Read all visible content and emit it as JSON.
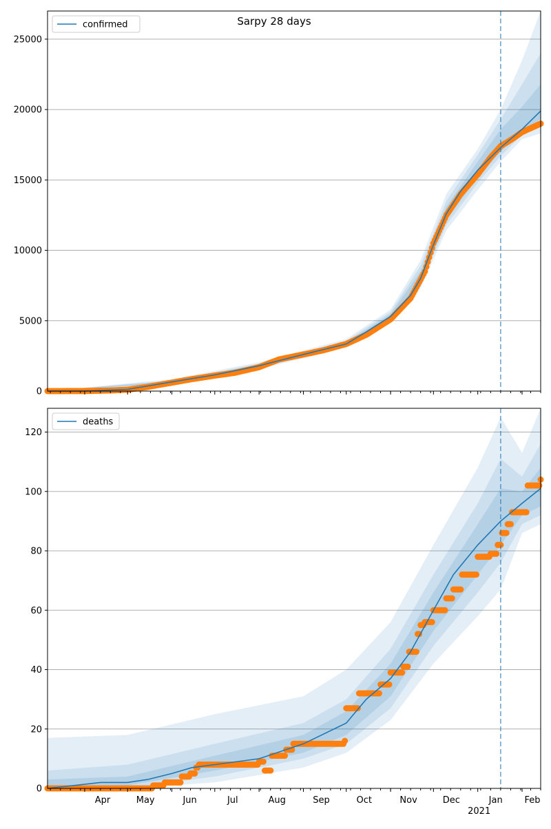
{
  "title": "Sarpy 28 days",
  "x_axis": {
    "month_labels": [
      "Apr",
      "May",
      "Jun",
      "Jul",
      "Aug",
      "Sep",
      "Oct",
      "Nov",
      "Dec",
      "Jan",
      "Feb"
    ],
    "year_label": "2021",
    "start_date": "2020-03-06",
    "end_date": "2021-02-14",
    "forecast_start": "2021-01-17"
  },
  "colors": {
    "model_line": "#1f77b4",
    "observed": "#ff7f0e",
    "band": "#1f77b4",
    "grid": "#b0b0b0",
    "forecast_marker": "#1f77b4"
  },
  "chart_data": [
    {
      "type": "line",
      "legend": "confirmed",
      "legend_position": "upper-left",
      "grid": "y-only",
      "ylim": [
        0,
        27000
      ],
      "y_ticks": [
        0,
        5000,
        10000,
        15000,
        20000,
        25000
      ],
      "observed_points": [
        [
          "2020-03-06",
          0
        ],
        [
          "2020-04-01",
          5
        ],
        [
          "2020-04-20",
          50
        ],
        [
          "2020-05-01",
          100
        ],
        [
          "2020-05-15",
          300
        ],
        [
          "2020-06-01",
          600
        ],
        [
          "2020-06-15",
          850
        ],
        [
          "2020-07-01",
          1100
        ],
        [
          "2020-07-15",
          1300
        ],
        [
          "2020-08-01",
          1700
        ],
        [
          "2020-08-15",
          2250
        ],
        [
          "2020-09-01",
          2600
        ],
        [
          "2020-09-15",
          2900
        ],
        [
          "2020-10-01",
          3350
        ],
        [
          "2020-10-15",
          4000
        ],
        [
          "2020-11-01",
          5100
        ],
        [
          "2020-11-15",
          6600
        ],
        [
          "2020-11-25",
          8500
        ],
        [
          "2020-12-01",
          10500
        ],
        [
          "2020-12-10",
          12500
        ],
        [
          "2020-12-20",
          14000
        ],
        [
          "2021-01-01",
          15400
        ],
        [
          "2021-01-10",
          16600
        ],
        [
          "2021-01-17",
          17400
        ],
        [
          "2021-01-25",
          17900
        ],
        [
          "2021-02-01",
          18400
        ],
        [
          "2021-02-14",
          19000
        ]
      ],
      "model_points": [
        [
          "2020-03-06",
          0
        ],
        [
          "2020-04-01",
          5
        ],
        [
          "2020-05-01",
          120
        ],
        [
          "2020-06-01",
          650
        ],
        [
          "2020-07-01",
          1150
        ],
        [
          "2020-08-01",
          1800
        ],
        [
          "2020-09-01",
          2600
        ],
        [
          "2020-10-01",
          3350
        ],
        [
          "2020-10-15",
          4200
        ],
        [
          "2020-11-01",
          5300
        ],
        [
          "2020-11-15",
          6800
        ],
        [
          "2020-11-22",
          8000
        ],
        [
          "2020-12-01",
          10400
        ],
        [
          "2020-12-10",
          12600
        ],
        [
          "2020-12-20",
          14200
        ],
        [
          "2021-01-01",
          15700
        ],
        [
          "2021-01-17",
          17300
        ],
        [
          "2021-02-01",
          18600
        ],
        [
          "2021-02-14",
          19900
        ]
      ],
      "bands": [
        {
          "date": [
            "2020-03-06",
            "2020-06-01",
            "2020-08-01",
            "2020-10-01",
            "2020-11-01",
            "2020-11-22",
            "2020-12-10",
            "2021-01-01",
            "2021-01-17",
            "2021-02-01",
            "2021-02-14"
          ],
          "lower": [
            0,
            450,
            1550,
            3100,
            4900,
            7300,
            11400,
            14300,
            16300,
            17900,
            18300
          ],
          "upper": [
            0,
            850,
            2050,
            3700,
            5800,
            9300,
            14000,
            17200,
            20000,
            23500,
            27000
          ]
        },
        {
          "date": [
            "2020-03-06",
            "2020-06-01",
            "2020-08-01",
            "2020-10-01",
            "2020-11-01",
            "2020-11-22",
            "2020-12-10",
            "2021-01-01",
            "2021-01-17",
            "2021-02-01",
            "2021-02-14"
          ],
          "lower": [
            0,
            520,
            1640,
            3180,
            5000,
            7550,
            11800,
            14800,
            16700,
            18200,
            18900
          ],
          "upper": [
            0,
            760,
            1950,
            3580,
            5620,
            8900,
            13500,
            16800,
            19300,
            21800,
            24000
          ]
        },
        {
          "date": [
            "2020-03-06",
            "2020-06-01",
            "2020-08-01",
            "2020-10-01",
            "2020-11-01",
            "2020-11-22",
            "2020-12-10",
            "2021-01-01",
            "2021-01-17",
            "2021-02-01",
            "2021-02-14"
          ],
          "lower": [
            0,
            570,
            1700,
            3250,
            5120,
            7750,
            12150,
            15200,
            17000,
            18500,
            19300
          ],
          "upper": [
            0,
            720,
            1880,
            3480,
            5480,
            8500,
            13100,
            16300,
            18600,
            20200,
            21800
          ]
        }
      ]
    },
    {
      "type": "line",
      "legend": "deaths",
      "legend_position": "upper-left",
      "grid": "y-only",
      "ylim": [
        0,
        128
      ],
      "y_ticks": [
        0,
        20,
        40,
        60,
        80,
        100,
        120
      ],
      "observed_points": [
        [
          "2020-03-06",
          0
        ],
        [
          "2020-05-01",
          0
        ],
        [
          "2020-05-19",
          1
        ],
        [
          "2020-05-27",
          2
        ],
        [
          "2020-06-08",
          4
        ],
        [
          "2020-06-14",
          5
        ],
        [
          "2020-06-18",
          7
        ],
        [
          "2020-06-20",
          8
        ],
        [
          "2020-07-26",
          8
        ],
        [
          "2020-08-01",
          9
        ],
        [
          "2020-08-05",
          6
        ],
        [
          "2020-08-10",
          11
        ],
        [
          "2020-08-20",
          13
        ],
        [
          "2020-08-25",
          15
        ],
        [
          "2020-09-30",
          16
        ],
        [
          "2020-10-01",
          27
        ],
        [
          "2020-10-10",
          32
        ],
        [
          "2020-10-25",
          35
        ],
        [
          "2020-11-01",
          39
        ],
        [
          "2020-11-10",
          41
        ],
        [
          "2020-11-14",
          46
        ],
        [
          "2020-11-20",
          52
        ],
        [
          "2020-11-22",
          55
        ],
        [
          "2020-11-25",
          56
        ],
        [
          "2020-12-01",
          60
        ],
        [
          "2020-12-10",
          64
        ],
        [
          "2020-12-15",
          67
        ],
        [
          "2020-12-21",
          72
        ],
        [
          "2021-01-01",
          78
        ],
        [
          "2021-01-10",
          79
        ],
        [
          "2021-01-15",
          82
        ],
        [
          "2021-01-18",
          86
        ],
        [
          "2021-01-22",
          89
        ],
        [
          "2021-01-25",
          93
        ],
        [
          "2021-02-05",
          102
        ],
        [
          "2021-02-14",
          104
        ]
      ],
      "model_points": [
        [
          "2020-03-06",
          0
        ],
        [
          "2020-03-25",
          1
        ],
        [
          "2020-04-12",
          2
        ],
        [
          "2020-05-01",
          2
        ],
        [
          "2020-05-15",
          3
        ],
        [
          "2020-06-01",
          5
        ],
        [
          "2020-06-15",
          7
        ],
        [
          "2020-07-01",
          8
        ],
        [
          "2020-08-01",
          10
        ],
        [
          "2020-09-01",
          15
        ],
        [
          "2020-10-01",
          22
        ],
        [
          "2020-10-15",
          30
        ],
        [
          "2020-11-01",
          37
        ],
        [
          "2020-11-15",
          46
        ],
        [
          "2020-12-01",
          60
        ],
        [
          "2020-12-15",
          72
        ],
        [
          "2021-01-01",
          82
        ],
        [
          "2021-01-17",
          90
        ],
        [
          "2021-02-01",
          96
        ],
        [
          "2021-02-14",
          101
        ]
      ],
      "bands": [
        {
          "date": [
            "2020-03-06",
            "2020-05-01",
            "2020-07-01",
            "2020-09-01",
            "2020-10-01",
            "2020-11-01",
            "2020-12-01",
            "2021-01-01",
            "2021-01-17",
            "2021-02-01",
            "2021-02-14"
          ],
          "lower": [
            0,
            0,
            2,
            7,
            12,
            23,
            42,
            58,
            67,
            86,
            89
          ],
          "upper": [
            17,
            18,
            25,
            31,
            40,
            56,
            82,
            108,
            125,
            113,
            128
          ]
        },
        {
          "date": [
            "2020-03-06",
            "2020-05-01",
            "2020-07-01",
            "2020-09-01",
            "2020-10-01",
            "2020-11-01",
            "2020-12-01",
            "2021-01-01",
            "2021-01-17",
            "2021-02-01",
            "2021-02-14"
          ],
          "lower": [
            0,
            0,
            4,
            10,
            15,
            27,
            48,
            66,
            76,
            89,
            92
          ],
          "upper": [
            6,
            8,
            15,
            22,
            30,
            47,
            72,
            96,
            111,
            105,
            116
          ]
        },
        {
          "date": [
            "2020-03-06",
            "2020-05-01",
            "2020-07-01",
            "2020-09-01",
            "2020-10-01",
            "2020-11-01",
            "2020-12-01",
            "2021-01-01",
            "2021-01-17",
            "2021-02-01",
            "2021-02-14"
          ],
          "lower": [
            0,
            1,
            6,
            12,
            18,
            31,
            53,
            72,
            82,
            92,
            95
          ],
          "upper": [
            3,
            4,
            11,
            18,
            26,
            42,
            66,
            89,
            101,
            100,
            108
          ]
        }
      ]
    }
  ]
}
